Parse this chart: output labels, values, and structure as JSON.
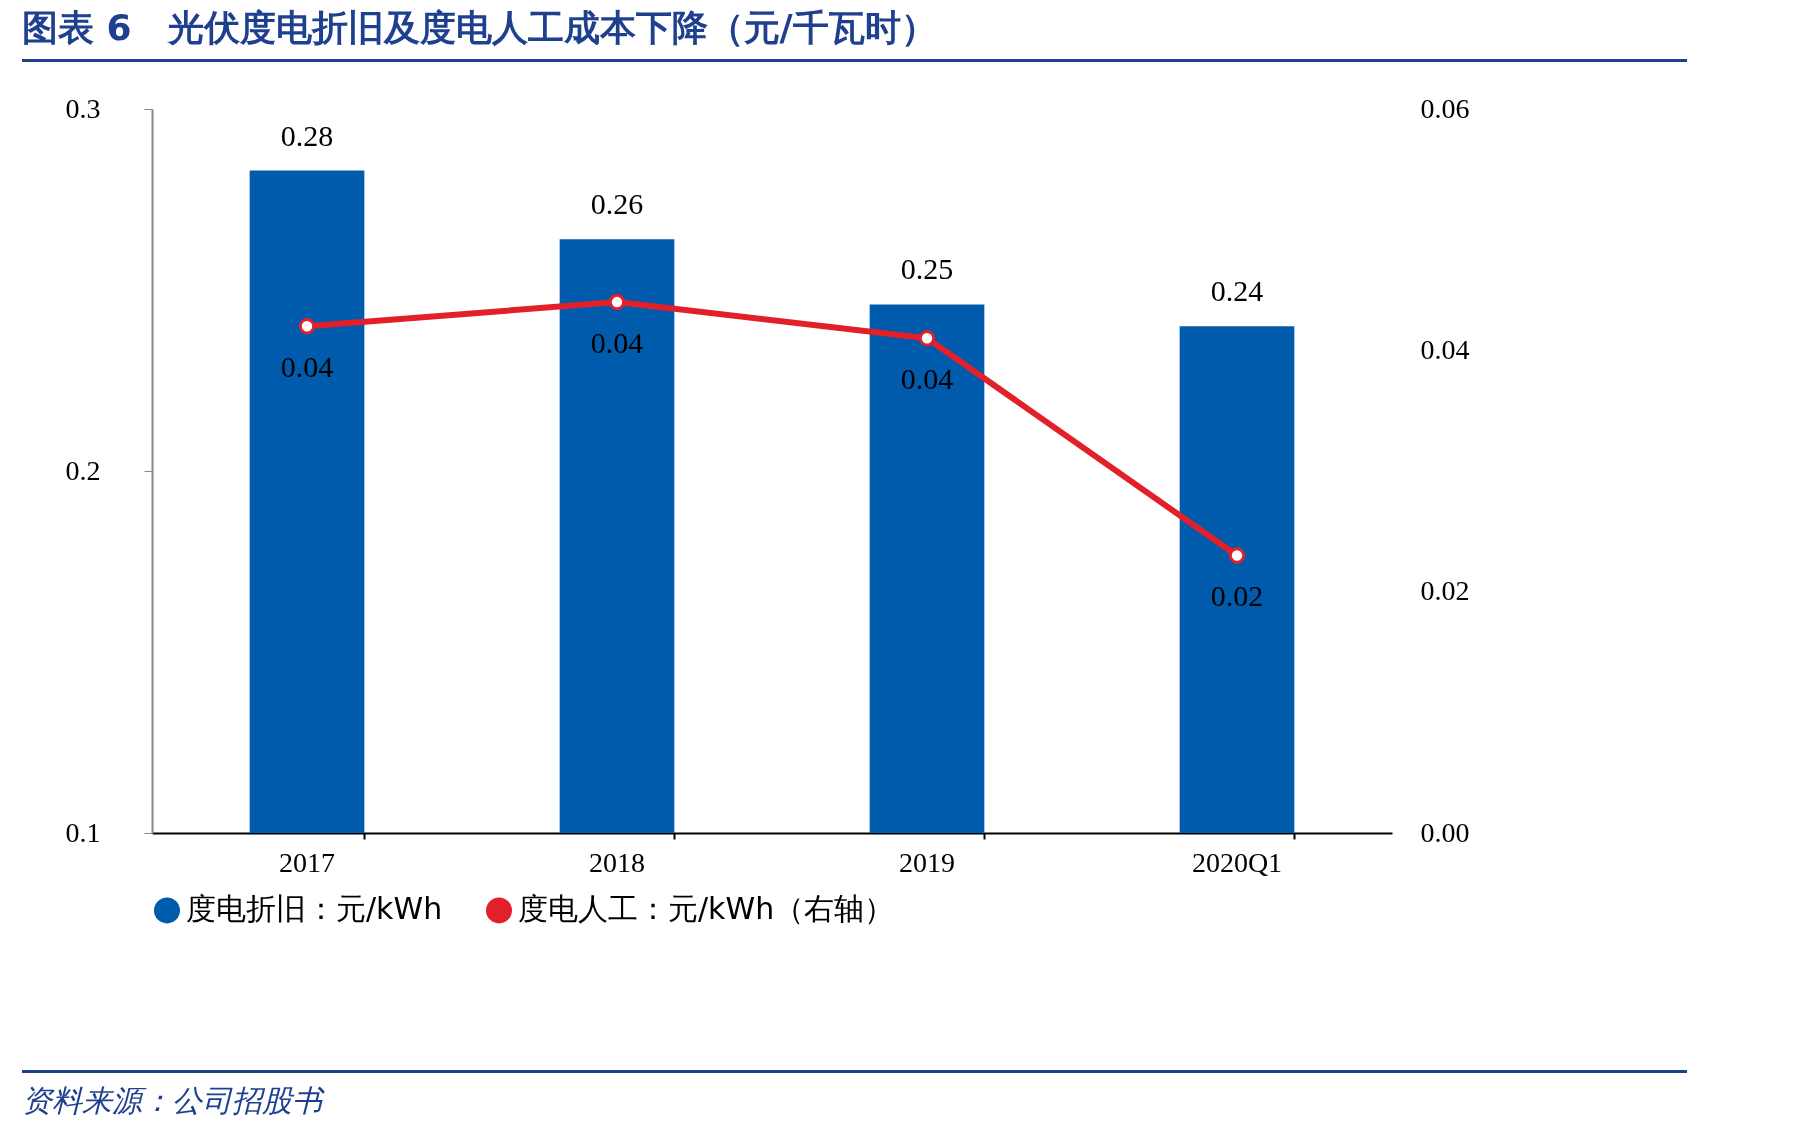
{
  "chart_data": {
    "type": "bar",
    "title": "图表 6　光伏度电折旧及度电人工成本下降（元/千瓦时）",
    "categories": [
      "2017",
      "2018",
      "2019",
      "2020Q1"
    ],
    "series": [
      {
        "name": "度电折旧：元/kWh",
        "color": "#005bac",
        "values": [
          0.283,
          0.264,
          0.246,
          0.24
        ],
        "value_labels": [
          "0.28",
          "0.26",
          "0.25",
          "0.24"
        ]
      },
      {
        "name": "度电人工：元/kWh（右轴）",
        "type": "line",
        "axis": "y2",
        "color": "#e3202a",
        "marker": "circle",
        "line_style": "solid",
        "values": [
          0.042,
          0.044,
          0.041,
          0.023
        ],
        "value_labels": [
          "0.04",
          "0.04",
          "0.04",
          "0.02"
        ]
      }
    ],
    "ylim": [
      0.1,
      0.3
    ],
    "yticks": [
      0.1,
      0.2,
      0.3
    ],
    "y2lim": [
      0,
      0.06
    ],
    "y2ticks": [
      {
        "value": 0,
        "label": "0.00"
      },
      {
        "value": 0.02,
        "label": "0.02"
      },
      {
        "value": 0.04,
        "label": "0.04"
      },
      {
        "value": 0.06,
        "label": "0.06"
      }
    ],
    "grid": false,
    "legend": "bottom",
    "annotations": [
      "资料来源：公司招股书"
    ]
  }
}
